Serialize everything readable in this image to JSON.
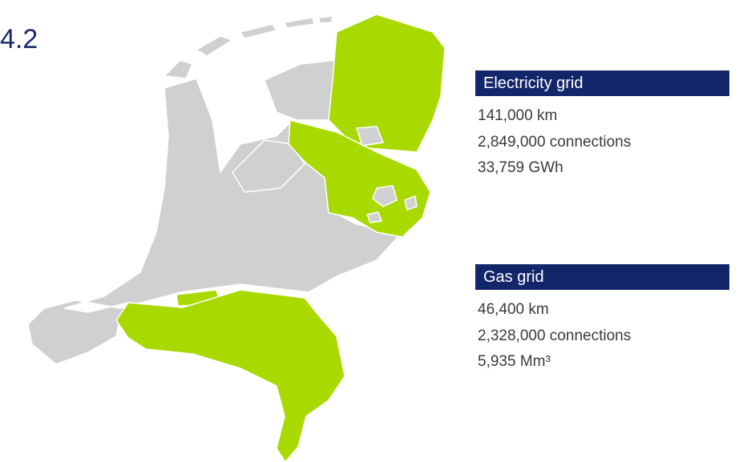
{
  "heading": "4.2",
  "panels": [
    {
      "title": "Electricity grid",
      "lines": [
        "141,000 km",
        "2,849,000 connections",
        "33,759 GWh"
      ]
    },
    {
      "title": "Gas grid",
      "lines": [
        "46,400 km",
        "2,328,000 connections",
        "5,935 Mm³"
      ]
    }
  ]
}
